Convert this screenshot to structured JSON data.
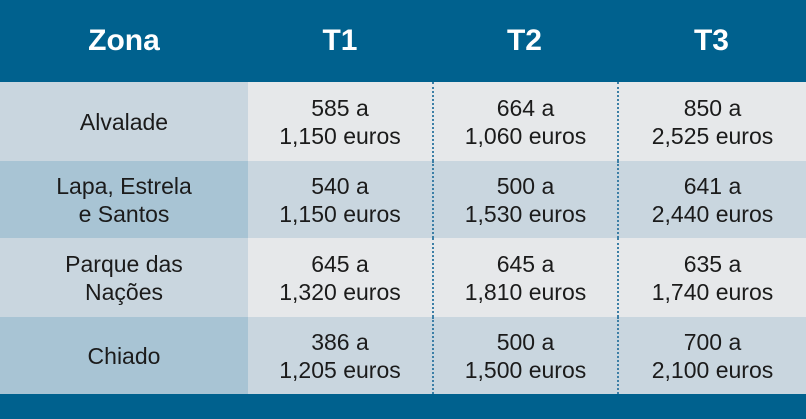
{
  "table": {
    "header": [
      "Zona",
      "T1",
      "T2",
      "T3"
    ],
    "rows": [
      [
        [
          "Alvalade"
        ],
        [
          "585 a",
          "1,150 euros"
        ],
        [
          "664 a",
          "1,060 euros"
        ],
        [
          "850 a",
          "2,525 euros"
        ]
      ],
      [
        [
          "Lapa, Estrela",
          "e Santos"
        ],
        [
          "540 a",
          "1,150 euros"
        ],
        [
          "500 a",
          "1,530 euros"
        ],
        [
          "641 a",
          "2,440 euros"
        ]
      ],
      [
        [
          "Parque das",
          "Nações"
        ],
        [
          "645 a",
          "1,320 euros"
        ],
        [
          "645 a",
          "1,810 euros"
        ],
        [
          "635 a",
          "1,740 euros"
        ]
      ],
      [
        [
          "Chiado"
        ],
        [
          "386 a",
          "1,205 euros"
        ],
        [
          "500 a",
          "1,500 euros"
        ],
        [
          "700 a",
          "2,100 euros"
        ]
      ]
    ]
  }
}
